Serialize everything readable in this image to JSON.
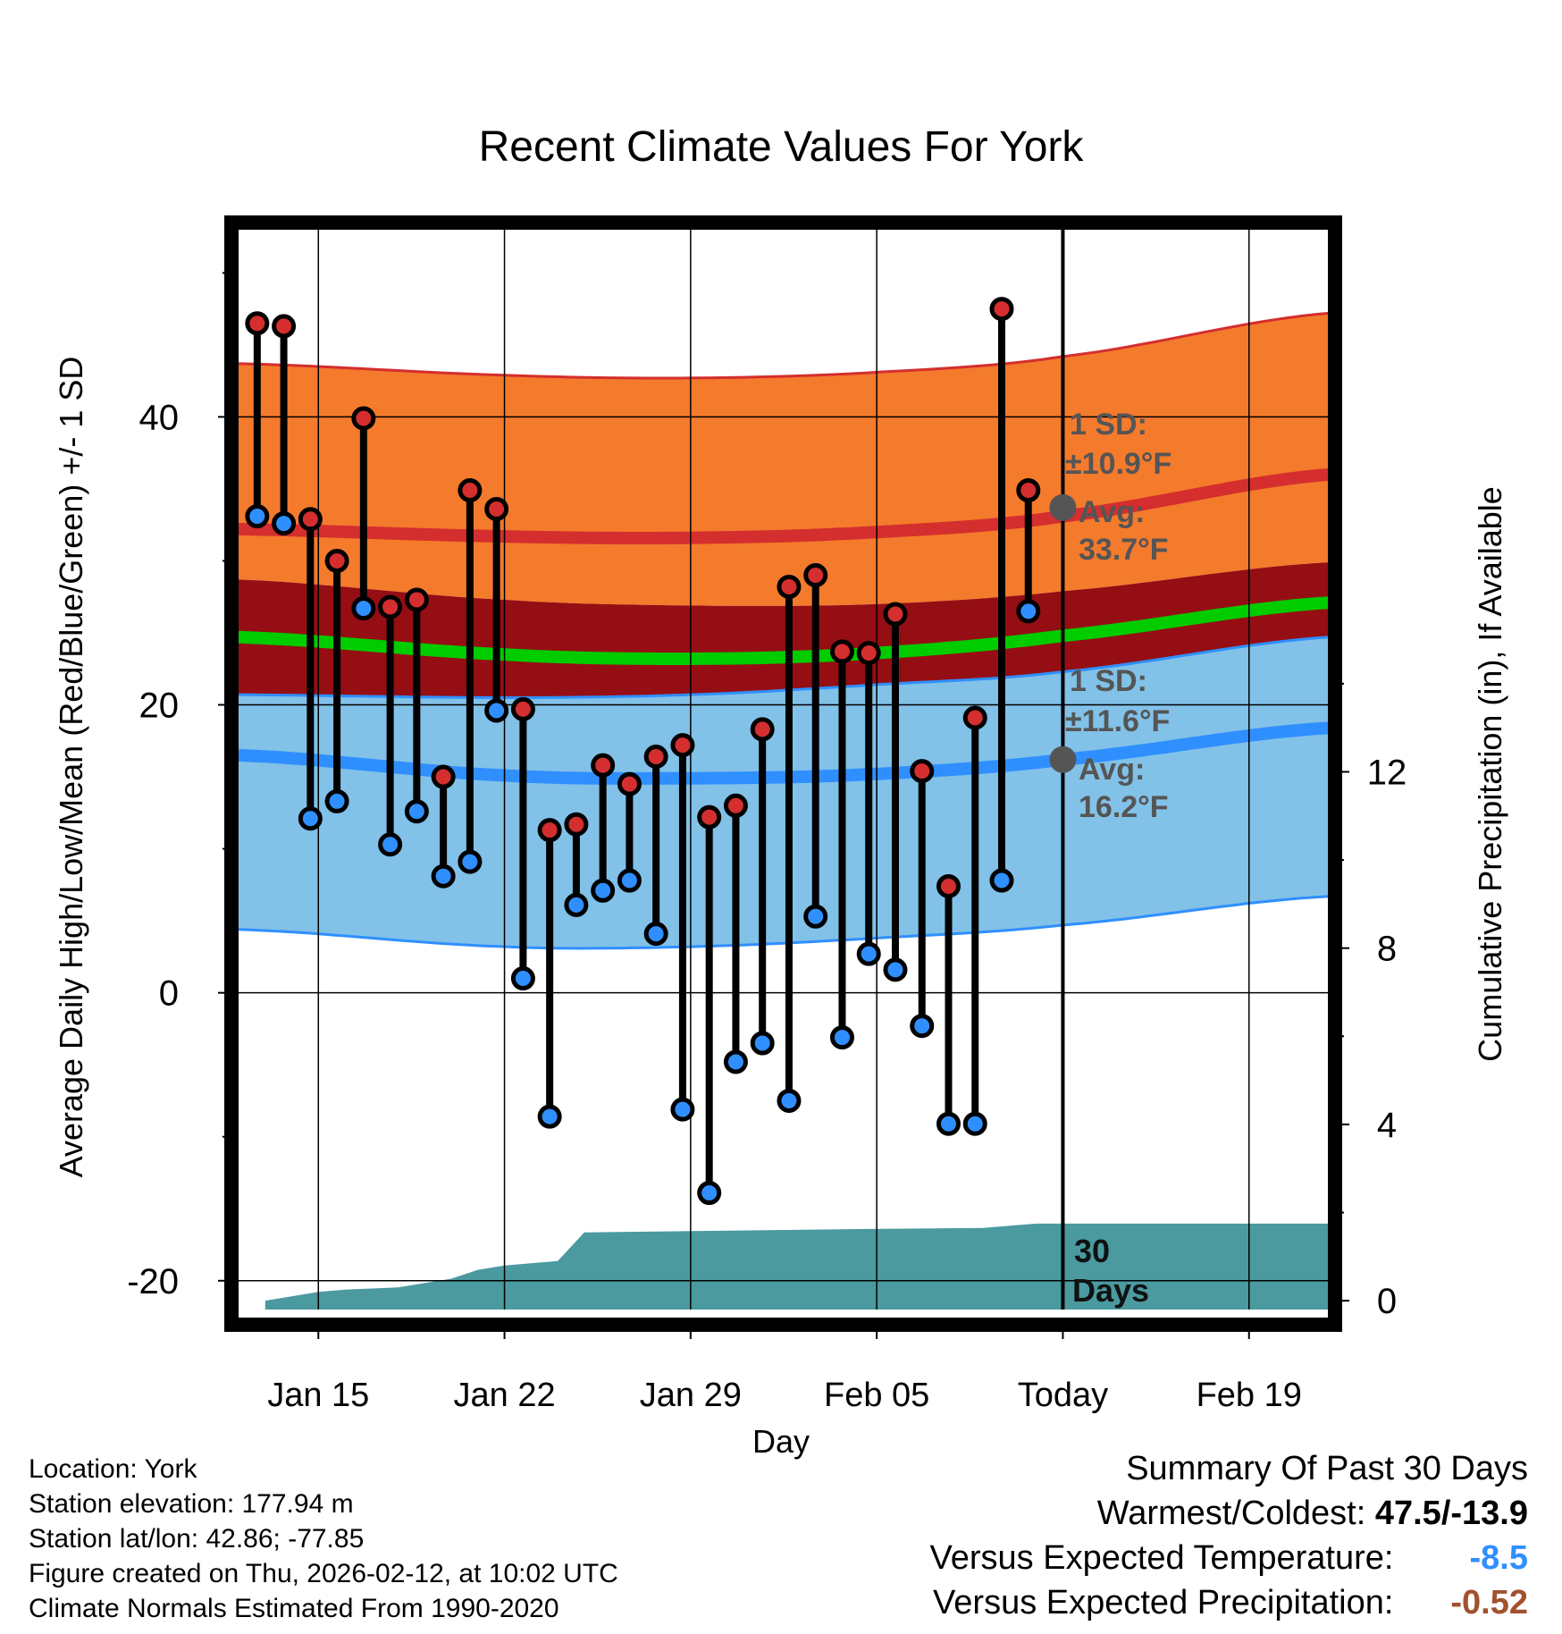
{
  "chart_data": {
    "type": "line",
    "title": "Recent Climate Values For York",
    "xlabel": "Day",
    "ylabel": "Average Daily High/Low/Mean (Red/Blue/Green) +/- 1 SD",
    "y2label": "Cumulative Precipitation (in), If Available",
    "ylim": [
      -22,
      53
    ],
    "y2lim": [
      -0.2,
      24.3
    ],
    "xlim": [
      0,
      41
    ],
    "yticks": [
      "40",
      "20",
      "0",
      "-20"
    ],
    "y2ticks": [
      "12",
      "8",
      "4",
      "0"
    ],
    "xticks": [
      {
        "x": 3,
        "label": "Jan 15"
      },
      {
        "x": 10,
        "label": "Jan 22"
      },
      {
        "x": 17,
        "label": "Jan 29"
      },
      {
        "x": 24,
        "label": "Feb 05"
      },
      {
        "x": 31,
        "label": "Today"
      },
      {
        "x": 38,
        "label": "Feb 19"
      }
    ],
    "today_x": 31,
    "normals": {
      "x": [
        0,
        10,
        17,
        24,
        31,
        41
      ],
      "high_plus_sd": [
        43.7,
        42.9,
        42.7,
        43.1,
        44.2,
        47.2
      ],
      "high_mean": [
        32.2,
        31.7,
        31.6,
        32.0,
        33.1,
        36.0
      ],
      "high_minus_sd": [
        28.7,
        27.3,
        26.9,
        27.0,
        27.9,
        29.9
      ],
      "mean_avg": [
        24.7,
        23.5,
        23.2,
        23.6,
        24.8,
        27.1
      ],
      "low_plus_sd": [
        20.7,
        20.5,
        20.7,
        21.4,
        22.3,
        24.7
      ],
      "low_mean": [
        16.5,
        15.1,
        14.9,
        15.2,
        16.2,
        18.4
      ],
      "low_minus_sd": [
        4.4,
        3.2,
        3.2,
        3.8,
        4.7,
        6.7
      ]
    },
    "daily_x": [
      0.7,
      1.7,
      2.7,
      3.7,
      4.7,
      5.7,
      6.7,
      7.7,
      8.7,
      9.7,
      10.7,
      11.7,
      12.7,
      13.7,
      14.7,
      15.7,
      16.7,
      17.7,
      18.7,
      19.7,
      20.7,
      21.7,
      22.7,
      23.7,
      24.7,
      25.7,
      26.7,
      27.7,
      28.7,
      29.7
    ],
    "series": [
      {
        "name": "High",
        "color": "#d42e2e",
        "values": [
          46.5,
          46.3,
          32.9,
          30.0,
          39.9,
          26.8,
          27.3,
          15.0,
          34.9,
          33.6,
          19.7,
          11.3,
          11.7,
          15.8,
          14.5,
          16.4,
          17.2,
          12.2,
          13.0,
          18.3,
          28.2,
          29.0,
          23.7,
          23.6,
          26.3,
          15.4,
          7.4,
          19.1,
          47.5,
          34.9
        ]
      },
      {
        "name": "Low",
        "color": "#2f8fff",
        "values": [
          33.1,
          32.6,
          12.1,
          13.3,
          26.7,
          10.3,
          12.6,
          8.1,
          9.1,
          19.6,
          1.0,
          -8.6,
          6.1,
          7.1,
          7.8,
          4.1,
          -8.1,
          -13.9,
          -4.8,
          -3.5,
          -7.5,
          5.3,
          -3.1,
          2.7,
          1.6,
          -2.3,
          -9.1,
          -9.1,
          7.8,
          26.5
        ]
      }
    ],
    "precip": {
      "x": [
        1,
        2,
        3,
        4,
        6,
        8,
        9,
        10,
        11,
        12,
        13,
        17,
        24,
        28,
        29,
        30,
        41
      ],
      "values": [
        0.0,
        0.1,
        0.2,
        0.25,
        0.3,
        0.5,
        0.7,
        0.8,
        0.85,
        0.9,
        1.55,
        1.58,
        1.63,
        1.65,
        1.7,
        1.75,
        1.75
      ]
    },
    "annotations": {
      "high_sd": "1 SD:",
      "high_sd_val": "±10.9°F",
      "high_avg": "Avg:",
      "high_avg_val": "33.7°F",
      "low_sd": "1 SD:",
      "low_sd_val": "±11.6°F",
      "low_avg": "Avg:",
      "low_avg_val": "16.2°F",
      "high_avg_value": 33.7,
      "low_avg_value": 16.2,
      "days_num": "30",
      "days_word": "Days"
    },
    "colors": {
      "high_band": "#f47a2c",
      "high_line": "#d42e2e",
      "mid_band": "#950e14",
      "mean_line": "#00cc00",
      "low_band": "#82c1e8",
      "low_line": "#2f8fff",
      "precip": "#4a9aa0",
      "marker_gray": "#555555"
    }
  },
  "footer": {
    "location": "Location: York",
    "elevation": "Station elevation: 177.94 m",
    "latlon": "Station lat/lon: 42.86; -77.85",
    "created": "Figure created on Thu, 2026-02-12, at 10:02 UTC",
    "normals": "Climate Normals Estimated From 1990-2020"
  },
  "summary": {
    "title": "Summary Of Past 30 Days",
    "warm_label": "Warmest/Coldest:",
    "warm_value": "47.5/-13.9",
    "temp_label": "Versus Expected Temperature:",
    "temp_value": "-8.5",
    "temp_color": "#2f8fff",
    "precip_label": "Versus Expected Precipitation:",
    "precip_value": "-0.52",
    "precip_color": "#a0522d"
  }
}
